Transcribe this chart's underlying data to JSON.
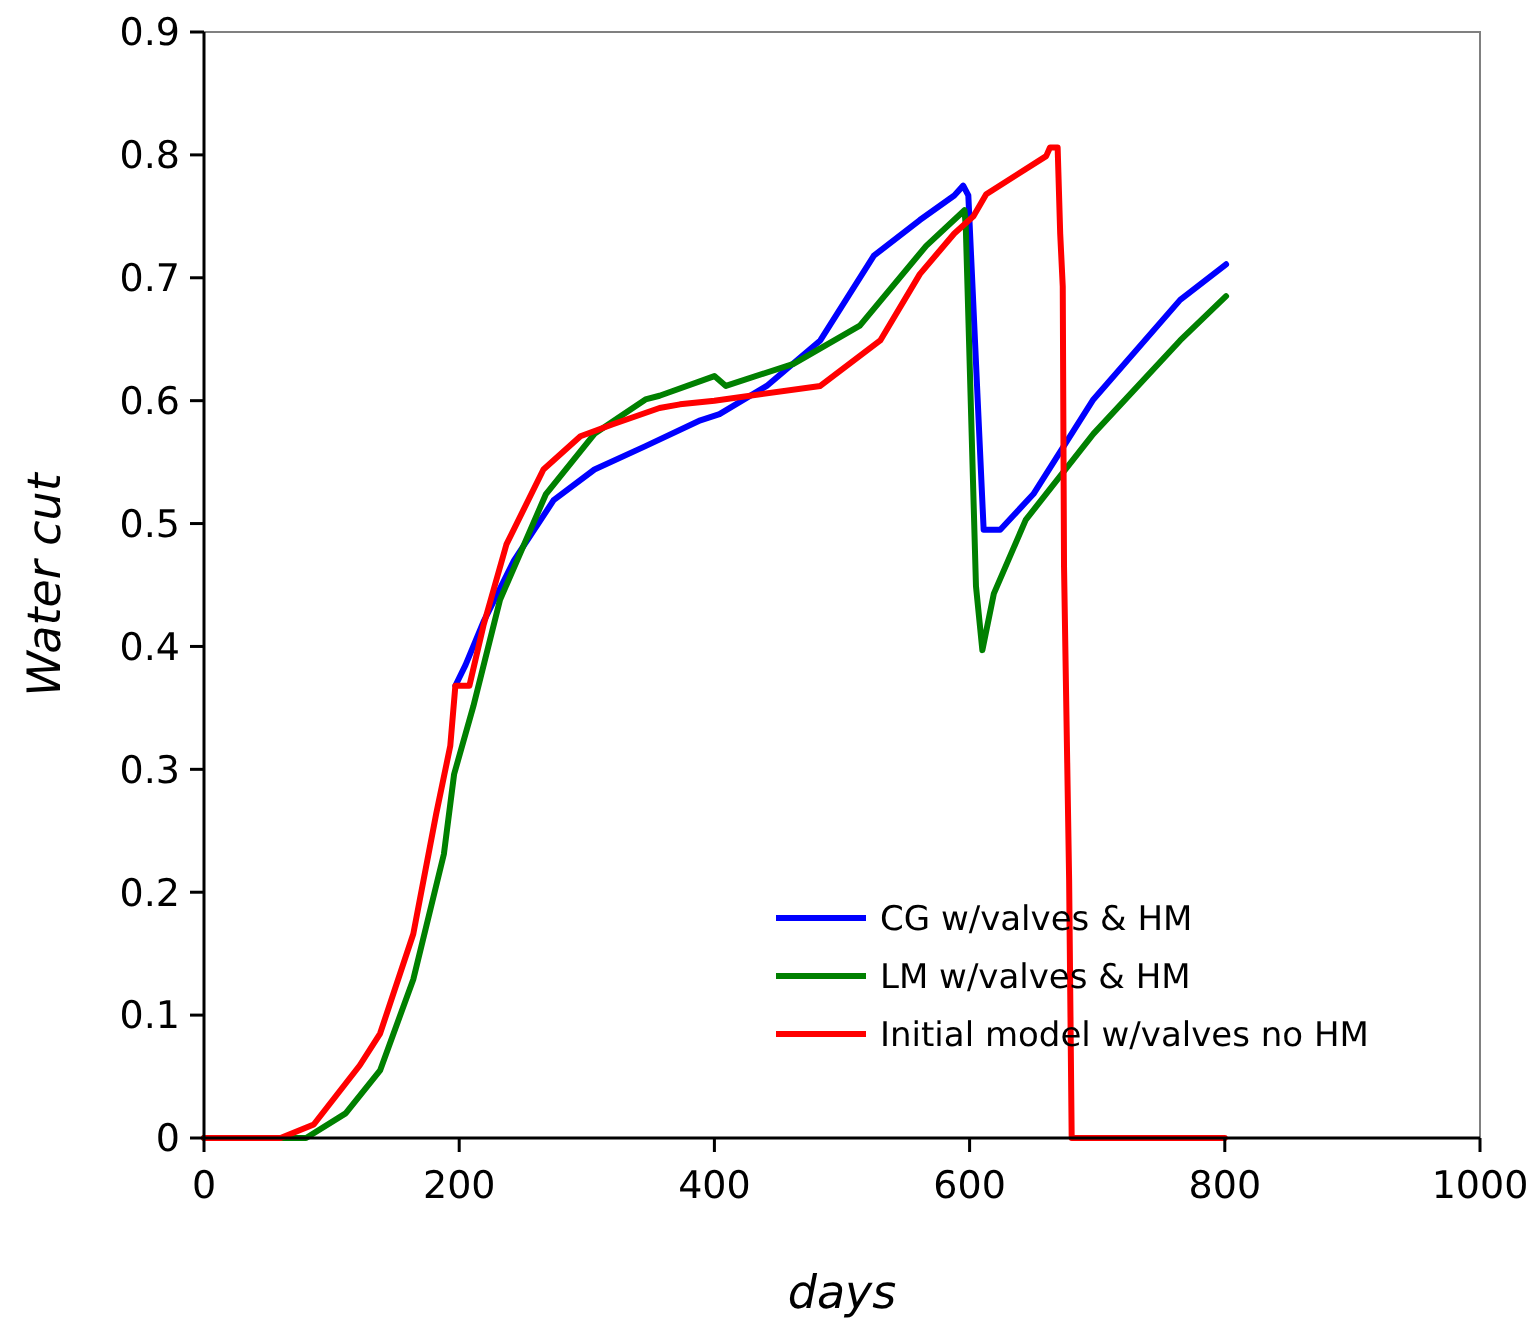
{
  "chart_data": {
    "type": "line",
    "xlabel": "days",
    "ylabel": "Water cut",
    "xlim": [
      0,
      1000
    ],
    "ylim": [
      0,
      0.9
    ],
    "xticks": [
      0,
      200,
      400,
      600,
      800,
      1000
    ],
    "yticks": [
      0,
      0.1,
      0.2,
      0.3,
      0.4,
      0.5,
      0.6,
      0.7,
      0.8,
      0.9
    ],
    "grid": false,
    "legend": "bottom right",
    "line_style": "solid",
    "series": [
      {
        "name": "CG w/valves & HM",
        "color": "#0000ff",
        "x": [
          197,
          205,
          219,
          243,
          274,
          306,
          346,
          389,
          404,
          441,
          483,
          525,
          561,
          588,
          595,
          599,
          611,
          624,
          650,
          697,
          765,
          801
        ],
        "values": [
          0.368,
          0.385,
          0.42,
          0.47,
          0.519,
          0.544,
          0.563,
          0.584,
          0.589,
          0.612,
          0.649,
          0.718,
          0.747,
          0.767,
          0.775,
          0.767,
          0.495,
          0.495,
          0.524,
          0.601,
          0.682,
          0.711
        ]
      },
      {
        "name": "LM w/valves & HM",
        "color": "#008000",
        "x": [
          0,
          80,
          111,
          138,
          164,
          188,
          196,
          211,
          232,
          268,
          306,
          346,
          357,
          400,
          409,
          462,
          514,
          566,
          596,
          597,
          605,
          610,
          619,
          644,
          697,
          765,
          801
        ],
        "values": [
          0,
          0,
          0.02,
          0.055,
          0.129,
          0.231,
          0.296,
          0.351,
          0.438,
          0.524,
          0.573,
          0.601,
          0.604,
          0.62,
          0.612,
          0.63,
          0.661,
          0.726,
          0.755,
          0.742,
          0.449,
          0.397,
          0.443,
          0.503,
          0.573,
          0.649,
          0.685
        ]
      },
      {
        "name": "Initial model w/valves no HM",
        "color": "#ff0000",
        "x": [
          0,
          60,
          86,
          122,
          138,
          164,
          182,
          193,
          197,
          208,
          219,
          237,
          266,
          295,
          321,
          357,
          373,
          400,
          483,
          530,
          561,
          588,
          603,
          613,
          660,
          663,
          669,
          671,
          673,
          674,
          678,
          680,
          800
        ],
        "values": [
          0,
          0,
          0.011,
          0.059,
          0.085,
          0.166,
          0.264,
          0.319,
          0.368,
          0.368,
          0.417,
          0.483,
          0.544,
          0.571,
          0.581,
          0.594,
          0.597,
          0.6,
          0.612,
          0.649,
          0.703,
          0.736,
          0.75,
          0.768,
          0.799,
          0.806,
          0.806,
          0.736,
          0.693,
          0.465,
          0.21,
          0,
          0
        ]
      }
    ]
  }
}
